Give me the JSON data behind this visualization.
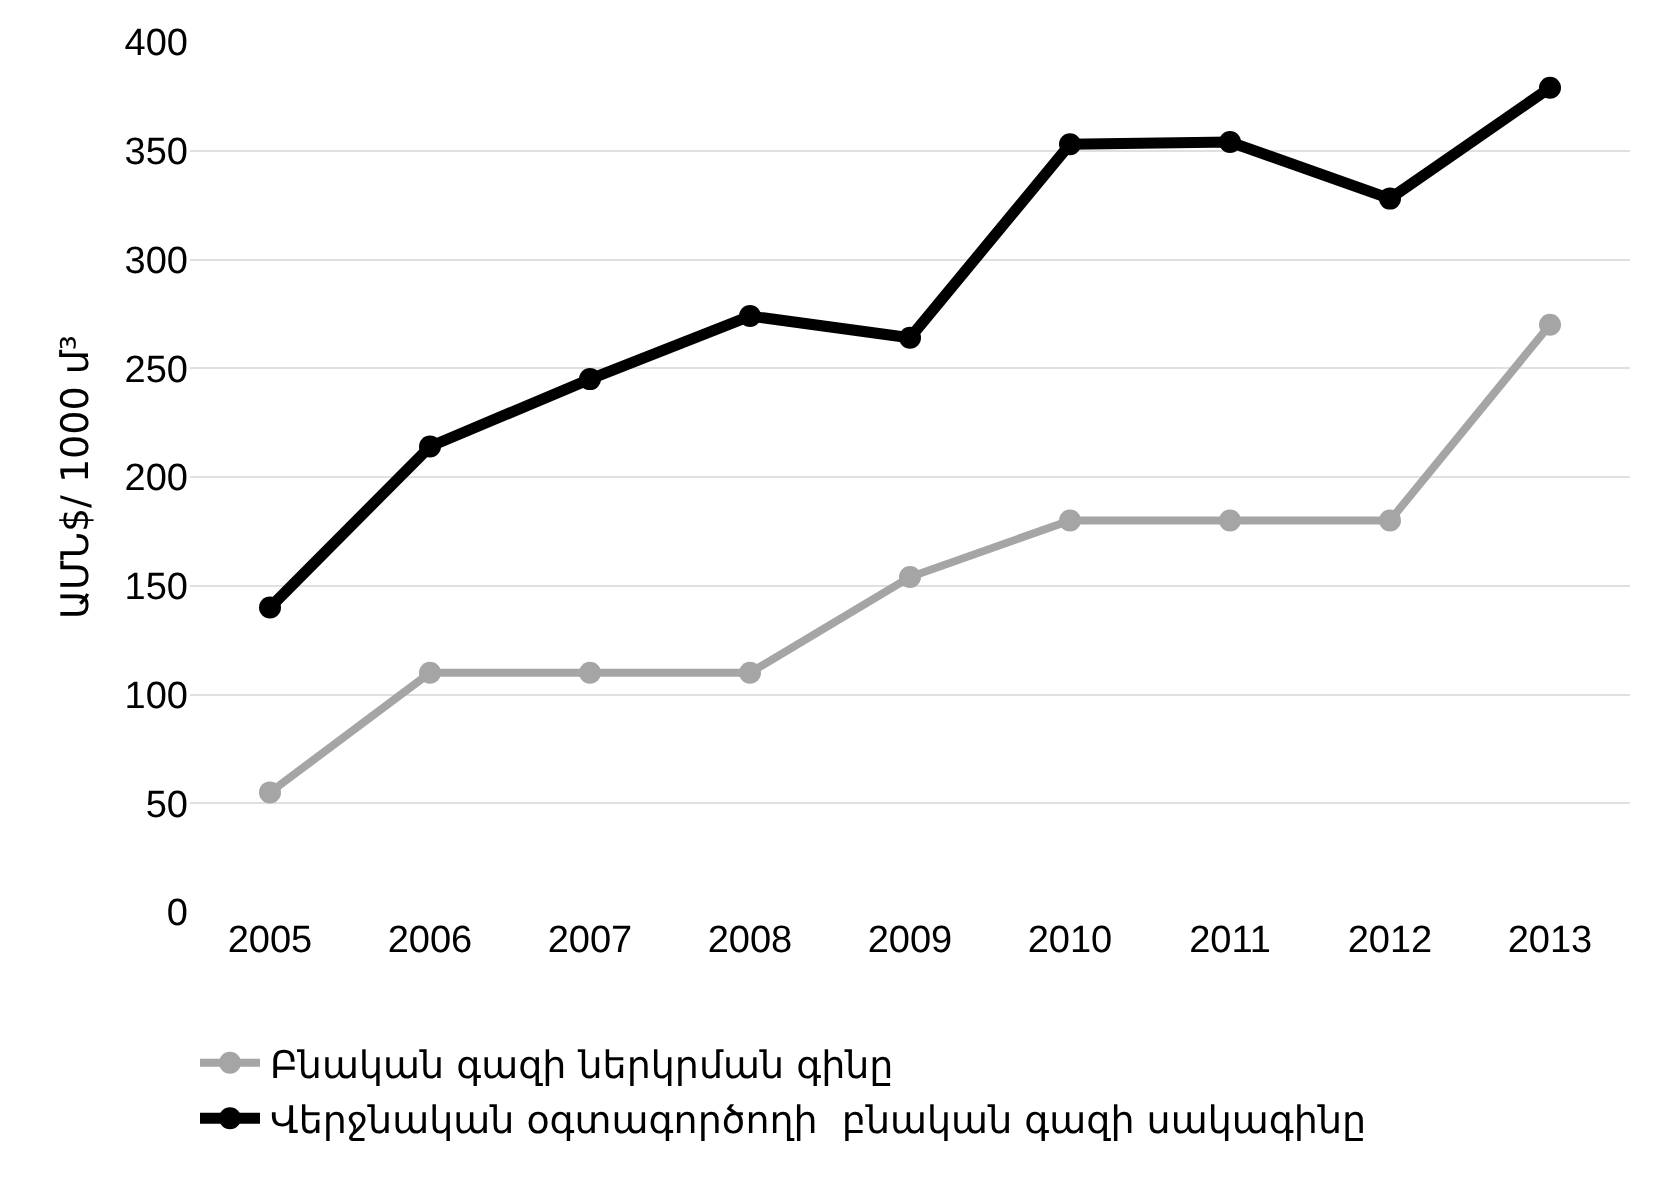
{
  "chart_data": {
    "type": "line",
    "ylabel": "ԱՄՆ$/ 1000 մ³",
    "categories": [
      "2005",
      "2006",
      "2007",
      "2008",
      "2009",
      "2010",
      "2011",
      "2012",
      "2013"
    ],
    "series": [
      {
        "name": "Բնական գազի ներկրման գինը",
        "color": "#a5a5a5",
        "values": [
          55,
          110,
          110,
          110,
          154,
          180,
          180,
          180,
          270
        ]
      },
      {
        "name": "Վերջնական օգտագործողի  բնական գազի սակագինը",
        "color": "#000000",
        "values": [
          140,
          214,
          245,
          274,
          264,
          353,
          354,
          328,
          379
        ]
      }
    ],
    "ylim": [
      0,
      400
    ],
    "yticks": [
      0,
      50,
      100,
      150,
      200,
      250,
      300,
      350,
      400
    ],
    "grid": "y",
    "legend": "bottom",
    "marker": "circle",
    "line_style": "solid"
  }
}
